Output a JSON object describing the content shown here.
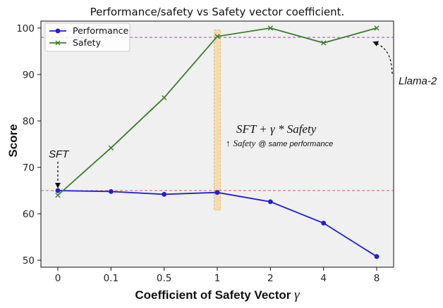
{
  "chart_data": {
    "type": "line",
    "title": "Performance/safety vs Safety vector coefficient.",
    "xlabel": "Coefficient of Safety Vector",
    "xlabel_symbol": "γ",
    "ylabel": "Score",
    "categories": [
      "0",
      "0.1",
      "0.5",
      "1",
      "2",
      "4",
      "8"
    ],
    "ylim": [
      48.5,
      101.5
    ],
    "yticks": [
      50,
      60,
      70,
      80,
      90,
      100
    ],
    "series": [
      {
        "name": "Performance",
        "color": "#1f1fd6",
        "marker": "circle",
        "values": [
          65.0,
          64.8,
          64.2,
          64.6,
          62.6,
          58.0,
          50.8
        ]
      },
      {
        "name": "Safety",
        "color": "#3a7d2c",
        "marker": "x",
        "values": [
          64.0,
          74.2,
          85.0,
          98.2,
          100.0,
          96.8,
          100.0
        ]
      }
    ],
    "legend_position": "top-left",
    "reference_lines": [
      {
        "label": "Llama-2",
        "value": 98.0,
        "color": "#9c4db0"
      },
      {
        "label": "SFT",
        "value": 65.0,
        "color": "#d15a5a"
      }
    ],
    "highlight_band": {
      "category": "1",
      "from": 60.8,
      "to": 99.6,
      "color": "#f3dca8"
    },
    "annotations": {
      "llama": "Llama-2",
      "sft": "SFT",
      "formula_main": "SFT + γ * Safety",
      "formula_arrow": "↑",
      "formula_safety": "Safety",
      "formula_rest": "@ same performance"
    }
  }
}
